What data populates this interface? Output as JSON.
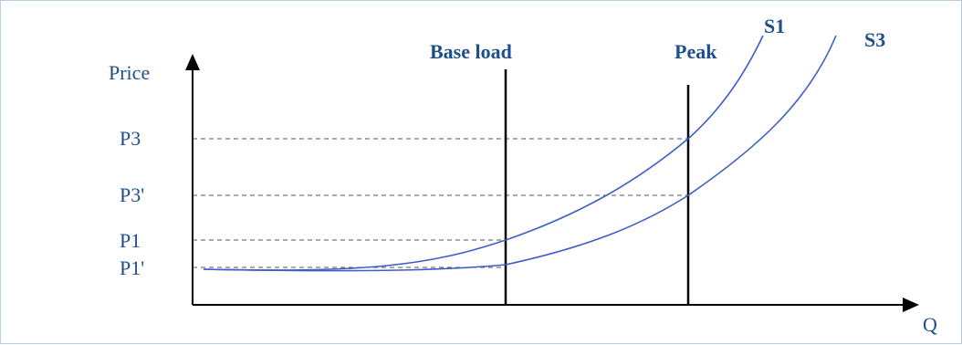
{
  "axes": {
    "y_label": "Price",
    "x_label": "Q"
  },
  "price_levels": [
    {
      "key": "p3",
      "label": "P3"
    },
    {
      "key": "p3p",
      "label": "P3'"
    },
    {
      "key": "p1",
      "label": "P1"
    },
    {
      "key": "p1p",
      "label": "P1'"
    }
  ],
  "vertical_lines": {
    "base": "Base load",
    "peak": "Peak"
  },
  "curves": {
    "s1": "S1",
    "s3": "S3"
  },
  "colors": {
    "curve": "#3d5fc4",
    "label": "#1f4e8c",
    "axis": "#000000",
    "guide": "#555555",
    "border": "#b9cde5"
  }
}
